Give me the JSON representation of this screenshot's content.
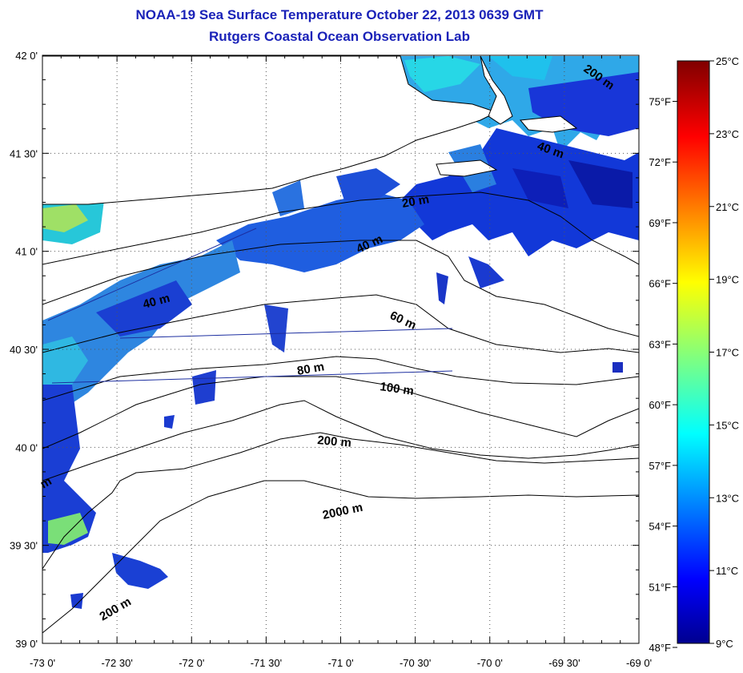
{
  "title": "NOAA-19 Sea Surface Temperature October 22, 2013 0639 GMT",
  "subtitle": "Rutgers Coastal Ocean Observation Lab",
  "colors": {
    "title": "#1a22b8",
    "land": "#ffffff",
    "track_line": "#1c2ea0"
  },
  "map": {
    "lon_range": [
      -73,
      -69
    ],
    "lat_range": [
      39,
      42
    ],
    "lon_ticks": [
      "-73 0'",
      "-72 30'",
      "-72 0'",
      "-71 30'",
      "-71 0'",
      "-70 30'",
      "-70 0'",
      "-69 30'",
      "-69 0'"
    ],
    "lat_ticks": [
      "42 0'",
      "41 30'",
      "41 0'",
      "40 30'",
      "40 0'",
      "39 30'",
      "39 0'"
    ],
    "contour_labels": [
      "200 m",
      "40 m",
      "20 m",
      "40 m",
      "40 m",
      "60 m",
      "80 m",
      "100 m",
      "200 m",
      "2000 m",
      "200 m",
      "m"
    ]
  },
  "colorbar": {
    "celsius_labels": [
      "25°C",
      "23°C",
      "21°C",
      "19°C",
      "17°C",
      "15°C",
      "13°C",
      "11°C",
      "9°C"
    ],
    "fahrenheit_labels": [
      "75°F",
      "72°F",
      "69°F",
      "66°F",
      "63°F",
      "60°F",
      "57°F",
      "54°F",
      "51°F",
      "48°F"
    ],
    "celsius_range": [
      9,
      25
    ]
  }
}
